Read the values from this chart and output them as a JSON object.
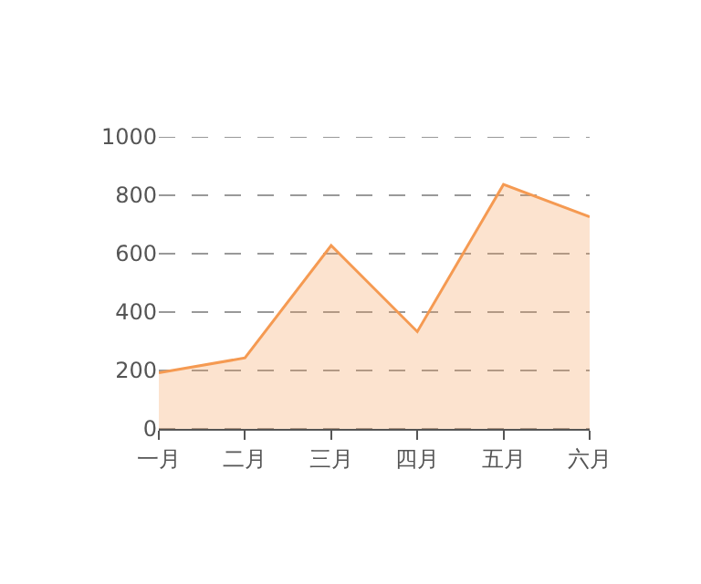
{
  "chart_data": {
    "type": "area",
    "categories": [
      "一月",
      "二月",
      "三月",
      "四月",
      "五月",
      "六月"
    ],
    "series": [
      {
        "color": "#f59a52",
        "values": [
          192,
          243,
          628,
          333,
          837,
          726
        ]
      }
    ],
    "ylim": [
      0,
      1000
    ],
    "yticks": [
      0,
      200,
      400,
      600,
      800,
      1000
    ],
    "grid": "y",
    "line_style": "solid",
    "marker": "none"
  }
}
